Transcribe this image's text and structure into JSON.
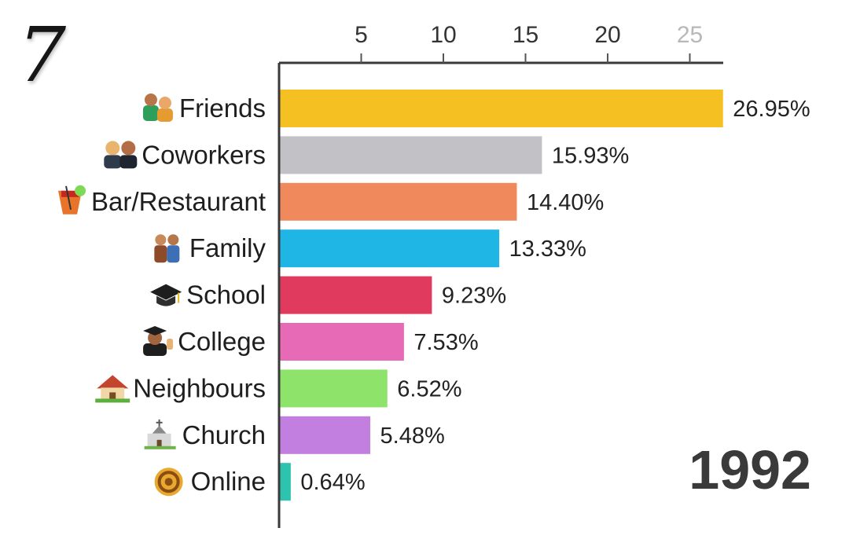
{
  "overlay": {
    "corner_number": "7"
  },
  "chart_data": {
    "type": "bar",
    "orientation": "horizontal",
    "title": "",
    "xlabel": "",
    "ylabel": "",
    "xlim": [
      0,
      27.5
    ],
    "x_ticks": [
      5,
      10,
      15,
      20,
      25
    ],
    "x_tick_labels": [
      "5",
      "10",
      "15",
      "20",
      "25"
    ],
    "axis_position": "top",
    "grid": false,
    "year": "1992",
    "categories": [
      "Friends",
      "Coworkers",
      "Bar/Restaurant",
      "Family",
      "School",
      "College",
      "Neighbours",
      "Church",
      "Online"
    ],
    "values": [
      26.95,
      15.93,
      14.4,
      13.33,
      9.23,
      7.53,
      6.52,
      5.48,
      0.64
    ],
    "value_labels": [
      "26.95%",
      "15.93%",
      "14.40%",
      "13.33%",
      "9.23%",
      "7.53%",
      "6.52%",
      "5.48%",
      "0.64%"
    ],
    "colors": [
      "#F5C021",
      "#C2C2C6",
      "#F08A5D",
      "#1FB5E5",
      "#E03A5E",
      "#E66AB5",
      "#8EE36B",
      "#C37FE0",
      "#2EC3AE"
    ],
    "icons": [
      "friends-icon",
      "coworkers-icon",
      "cocktail-icon",
      "family-icon",
      "graduation-cap-icon",
      "graduate-icon",
      "house-icon",
      "church-icon",
      "at-sign-icon"
    ]
  }
}
